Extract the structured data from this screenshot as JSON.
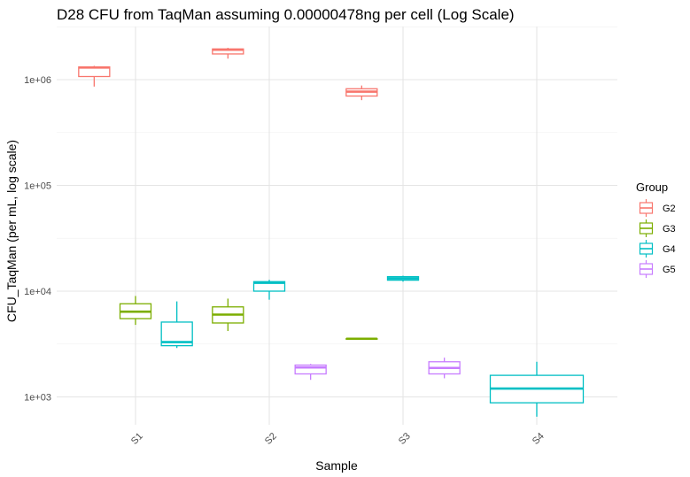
{
  "chart_data": {
    "type": "boxplot",
    "title": "D28 CFU from TaqMan assuming 0.00000478ng per cell (Log Scale)",
    "xlabel": "Sample",
    "ylabel": "CFU_TaqMan (per mL, log scale)",
    "y_scale": "log10",
    "ylim": [
      600,
      3000000
    ],
    "y_ticks": [
      {
        "value": 1000,
        "label": "1e+03"
      },
      {
        "value": 10000,
        "label": "1e+04"
      },
      {
        "value": 100000,
        "label": "1e+05"
      },
      {
        "value": 1000000,
        "label": "1e+06"
      }
    ],
    "categories": [
      "S1",
      "S2",
      "S3",
      "S4"
    ],
    "legend": {
      "title": "Group",
      "position": "right",
      "entries": [
        {
          "name": "G2",
          "color": "#F8766D"
        },
        {
          "name": "G3",
          "color": "#7CAE00"
        },
        {
          "name": "G4",
          "color": "#00BFC4"
        },
        {
          "name": "G5",
          "color": "#C77CFF"
        }
      ]
    },
    "grid": true,
    "boxes": [
      {
        "category": "S1",
        "group": "G2",
        "slot": 0,
        "nslots": 3,
        "min": 860000,
        "q1": 1070000,
        "median": 1300000,
        "q3": 1320000,
        "max": 1350000
      },
      {
        "category": "S1",
        "group": "G3",
        "slot": 1,
        "nslots": 3,
        "min": 4800.0,
        "q1": 5500,
        "median": 6400,
        "q3": 7600,
        "max": 9000
      },
      {
        "category": "S1",
        "group": "G4",
        "slot": 2,
        "nslots": 3,
        "min": 2900,
        "q1": 3050,
        "median": 3300,
        "q3": 5100,
        "max": 8000
      },
      {
        "category": "S2",
        "group": "G2",
        "slot": 0,
        "nslots": 3,
        "min": 1580000,
        "q1": 1750000,
        "median": 1920000,
        "q3": 1950000,
        "max": 2000000
      },
      {
        "category": "S2",
        "group": "G3",
        "slot": 0,
        "nslots": 3,
        "min": 4200,
        "q1": 5000,
        "median": 6000,
        "q3": 7100,
        "max": 8500
      },
      {
        "category": "S2",
        "group": "G4",
        "slot": 1,
        "nslots": 3,
        "min": 8300,
        "q1": 10000,
        "median": 12000,
        "q3": 12300,
        "max": 12800
      },
      {
        "category": "S2",
        "group": "G5",
        "slot": 2,
        "nslots": 3,
        "min": 1450,
        "q1": 1650,
        "median": 1900,
        "q3": 2000,
        "max": 2050
      },
      {
        "category": "S3",
        "group": "G2",
        "slot": 0,
        "nslots": 3,
        "min": 640000,
        "q1": 700000,
        "median": 770000,
        "q3": 820000,
        "max": 880000
      },
      {
        "category": "S3",
        "group": "G3",
        "slot": 0,
        "nslots": 3,
        "min": 3550,
        "q1": 3550,
        "median": 3550,
        "q3": 3550,
        "max": 3550
      },
      {
        "category": "S3",
        "group": "G4",
        "slot": 1,
        "nslots": 3,
        "min": 12300,
        "q1": 12700,
        "median": 13200,
        "q3": 13700,
        "max": 14000
      },
      {
        "category": "S3",
        "group": "G5",
        "slot": 2,
        "nslots": 3,
        "min": 1500,
        "q1": 1650,
        "median": 1880,
        "q3": 2150,
        "max": 2350
      },
      {
        "category": "S4",
        "group": "G4",
        "slot": 0,
        "nslots": 1,
        "min": 650,
        "q1": 880,
        "median": 1200,
        "q3": 1600,
        "max": 2150
      }
    ]
  }
}
